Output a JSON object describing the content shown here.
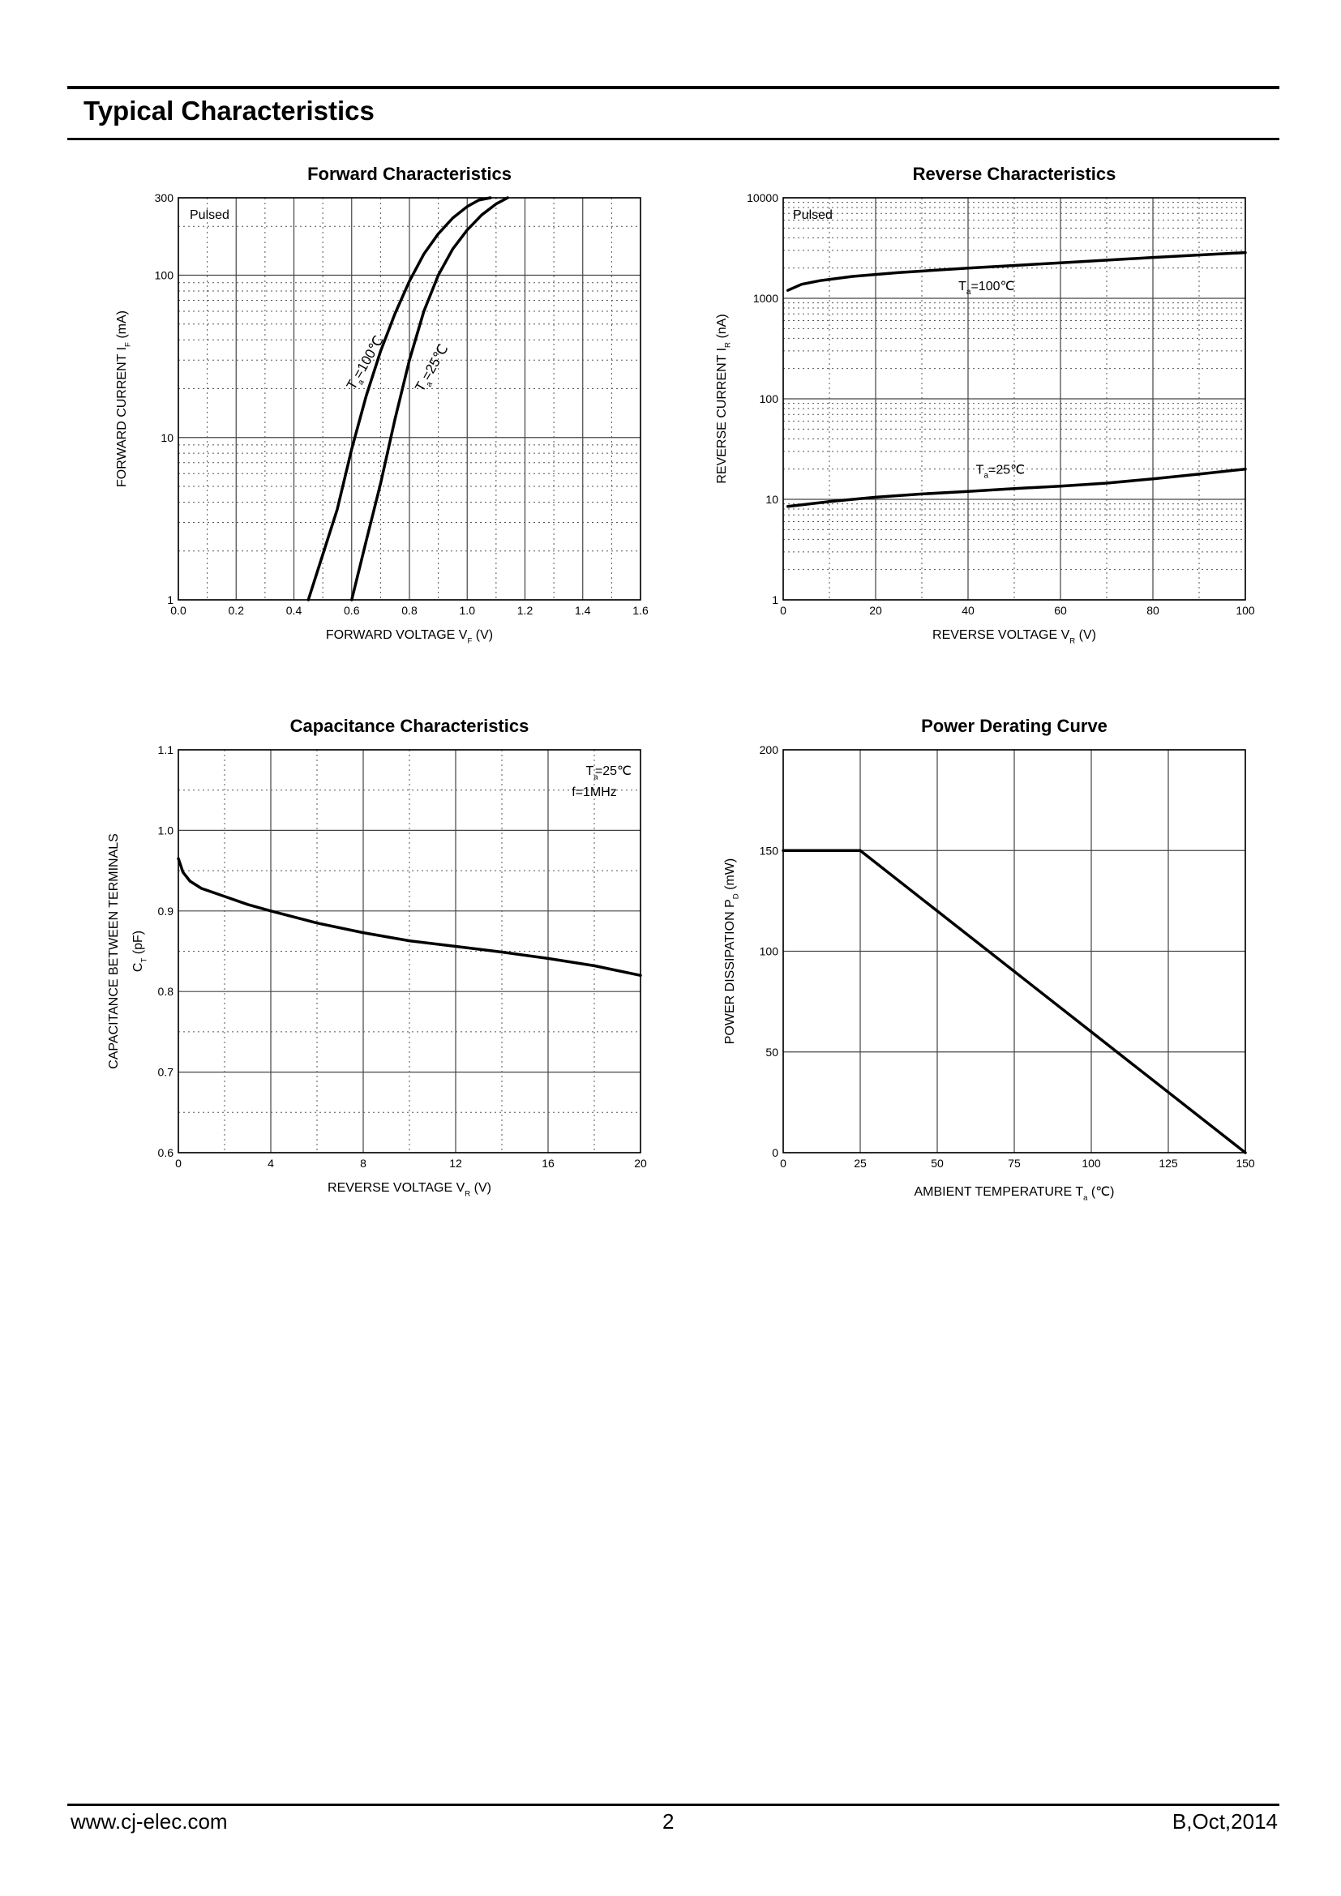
{
  "page": {
    "title": "Typical Characteristics",
    "footer_left": "www.cj-elec.com",
    "footer_center": "2",
    "footer_right": "B,Oct,2014"
  },
  "chart_data": [
    {
      "type": "line",
      "title": "Forward Characteristics",
      "xlabel": "FORWARD VOLTAGE   V",
      "xlabel_sub": "F",
      "xlabel_unit": "(V)",
      "ylabel": "FORWARD CURRENT    I",
      "ylabel_sub": "F",
      "ylabel_unit": "(mA)",
      "y_scale": "log",
      "xlim": [
        0,
        1.6
      ],
      "ylim": [
        1,
        300
      ],
      "x_ticks": [
        "0.0",
        "0.2",
        "0.4",
        "0.6",
        "0.8",
        "1.0",
        "1.2",
        "1.4",
        "1.6"
      ],
      "y_ticks": [
        {
          "v": 1,
          "t": "1"
        },
        {
          "v": 10,
          "t": "10"
        },
        {
          "v": 100,
          "t": "100"
        },
        {
          "v": 300,
          "t": "300"
        }
      ],
      "annotation": "Pulsed",
      "series": [
        {
          "name": "T",
          "sub": "a",
          "suffix": "=100℃",
          "x": [
            0.45,
            0.5,
            0.55,
            0.6,
            0.65,
            0.7,
            0.75,
            0.8,
            0.85,
            0.9,
            0.95,
            1.0,
            1.04,
            1.08
          ],
          "y": [
            1,
            1.9,
            3.6,
            8.5,
            18,
            34,
            58,
            92,
            135,
            180,
            225,
            265,
            290,
            300
          ]
        },
        {
          "name": "T",
          "sub": "a",
          "suffix": "=25℃",
          "x": [
            0.6,
            0.65,
            0.7,
            0.75,
            0.8,
            0.85,
            0.9,
            0.95,
            1.0,
            1.05,
            1.1,
            1.14
          ],
          "y": [
            1,
            2.3,
            5.2,
            13,
            30,
            60,
            100,
            145,
            190,
            235,
            275,
            300
          ]
        }
      ]
    },
    {
      "type": "line",
      "title": "Reverse  Characteristics",
      "xlabel": "REVERSE VOLTAGE   V",
      "xlabel_sub": "R",
      "xlabel_unit": "(V)",
      "ylabel": "REVERSE CURRENT   I",
      "ylabel_sub": "R",
      "ylabel_unit": "(nA)",
      "y_scale": "log",
      "xlim": [
        0,
        100
      ],
      "ylim": [
        1,
        10000
      ],
      "x_ticks": [
        "0",
        "20",
        "40",
        "60",
        "80",
        "100"
      ],
      "y_ticks": [
        {
          "v": 1,
          "t": "1"
        },
        {
          "v": 10,
          "t": "10"
        },
        {
          "v": 100,
          "t": "100"
        },
        {
          "v": 1000,
          "t": "1000"
        },
        {
          "v": 10000,
          "t": "10000"
        }
      ],
      "annotation": "Pulsed",
      "series": [
        {
          "name": "T",
          "sub": "a",
          "suffix": "=100℃",
          "x": [
            1,
            4,
            8,
            15,
            25,
            40,
            60,
            80,
            100
          ],
          "y": [
            1200,
            1380,
            1500,
            1650,
            1800,
            2000,
            2250,
            2550,
            2850
          ]
        },
        {
          "name": "T",
          "sub": "a",
          "suffix": "=25℃",
          "x": [
            1,
            10,
            20,
            30,
            40,
            50,
            60,
            70,
            80,
            90,
            100
          ],
          "y": [
            8.5,
            9.5,
            10.5,
            11.3,
            12,
            12.8,
            13.5,
            14.5,
            16,
            17.8,
            20
          ]
        }
      ]
    },
    {
      "type": "line",
      "title": "Capacitance Characteristics",
      "xlabel": "REVERSE VOLTAGE   V",
      "xlabel_sub": "R",
      "xlabel_unit": "(V)",
      "ylabel": "CAPACITANCE BETWEEN TERMINALS",
      "ylabel2": "C",
      "ylabel2_sub": "T",
      "ylabel2_unit": "(pF)",
      "y_scale": "linear",
      "xlim": [
        0,
        20
      ],
      "ylim": [
        0.6,
        1.1
      ],
      "x_ticks": [
        "0",
        "4",
        "8",
        "12",
        "16",
        "20"
      ],
      "y_ticks": [
        {
          "v": 0.6,
          "t": "0.6"
        },
        {
          "v": 0.7,
          "t": "0.7"
        },
        {
          "v": 0.8,
          "t": "0.8"
        },
        {
          "v": 0.9,
          "t": "0.9"
        },
        {
          "v": 1.0,
          "t": "1.0"
        },
        {
          "v": 1.1,
          "t": "1.1"
        }
      ],
      "annotation_lines": [
        {
          "t": "T",
          "sub": "a",
          "suffix": "=25℃"
        },
        {
          "t": "f=1MHz"
        }
      ],
      "series": [
        {
          "x": [
            0,
            0.2,
            0.5,
            1,
            2,
            3,
            4,
            6,
            8,
            10,
            12,
            14,
            16,
            18,
            20
          ],
          "y": [
            0.965,
            0.948,
            0.937,
            0.928,
            0.918,
            0.908,
            0.9,
            0.885,
            0.873,
            0.863,
            0.856,
            0.849,
            0.841,
            0.832,
            0.82
          ]
        }
      ]
    },
    {
      "type": "line",
      "title": "Power Derating Curve",
      "xlabel": "AMBIENT TEMPERATURE    T",
      "xlabel_sub": "a",
      "xlabel_unit": "(℃)",
      "ylabel": "POWER DISSIPATION    P",
      "ylabel_sub": "D",
      "ylabel_unit": "(mW)",
      "y_scale": "linear",
      "xlim": [
        0,
        150
      ],
      "ylim": [
        0,
        200
      ],
      "x_ticks": [
        "0",
        "25",
        "50",
        "75",
        "100",
        "125",
        "150"
      ],
      "y_ticks": [
        {
          "v": 0,
          "t": "0"
        },
        {
          "v": 50,
          "t": "50"
        },
        {
          "v": 100,
          "t": "100"
        },
        {
          "v": 150,
          "t": "150"
        },
        {
          "v": 200,
          "t": "200"
        }
      ],
      "series": [
        {
          "x": [
            0,
            25,
            150
          ],
          "y": [
            150,
            150,
            0
          ]
        }
      ]
    }
  ]
}
